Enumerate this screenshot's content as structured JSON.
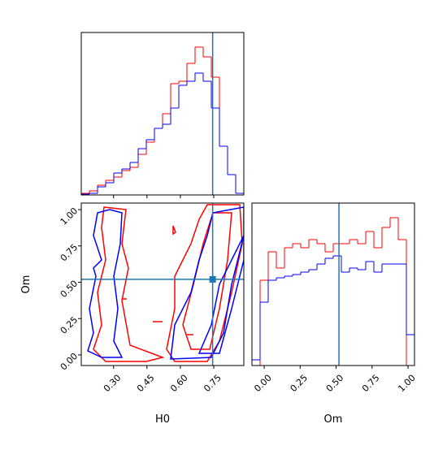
{
  "chart_data": [
    {
      "type": "histogram",
      "bins": [
        0.155,
        0.1915,
        0.228,
        0.2645,
        0.301,
        0.3375,
        0.374,
        0.4105,
        0.447,
        0.4835,
        0.52,
        0.5565,
        0.593,
        0.6295,
        0.666,
        0.7025,
        0.739,
        0.7755,
        0.812,
        0.8485,
        0.885
      ],
      "series": [
        {
          "color": "#ff0000",
          "values": [
            2,
            5,
            12,
            18,
            22,
            30,
            34,
            50,
            65,
            82,
            100,
            137,
            140,
            162,
            182,
            170,
            145,
            60,
            25,
            2
          ]
        },
        {
          "color": "#0000ff",
          "values": [
            1,
            2,
            10,
            15,
            27,
            32,
            40,
            57,
            68,
            82,
            87,
            107,
            135,
            140,
            150,
            140,
            107,
            60,
            25,
            2
          ]
        }
      ],
      "xlim": [
        0.155,
        0.885
      ],
      "ylim": [
        0,
        200
      ],
      "xticks": [
        0.3,
        0.45,
        0.6,
        0.75
      ],
      "truth": 0.745,
      "truth_color": "#1f77b4"
    },
    {
      "type": "contour",
      "xlabel": "H0",
      "ylabel": "Om",
      "xlim": [
        0.155,
        0.885
      ],
      "ylim": [
        -0.073,
        1.045
      ],
      "xticks": [
        {
          "value": 0.3,
          "label": "0.30"
        },
        {
          "value": 0.45,
          "label": "0.45"
        },
        {
          "value": 0.6,
          "label": "0.60"
        },
        {
          "value": 0.75,
          "label": "0.75"
        }
      ],
      "yticks": [
        {
          "value": 0,
          "label": "0.00"
        },
        {
          "value": 0.25,
          "label": "0.25"
        },
        {
          "value": 0.5,
          "label": "0.50"
        },
        {
          "value": 0.75,
          "label": "0.75"
        },
        {
          "value": 1,
          "label": "1.00"
        }
      ],
      "truth": [
        0.745,
        0.52
      ],
      "truth_color": "#1f77b4"
    },
    {
      "type": "histogram",
      "xlabel": "Om",
      "bins": [
        -0.085,
        -0.0285,
        0.028,
        0.0845,
        0.141,
        0.1975,
        0.254,
        0.3105,
        0.367,
        0.4235,
        0.48,
        0.5365,
        0.593,
        0.6495,
        0.706,
        0.7625,
        0.819,
        0.8755,
        0.932,
        0.9885,
        1.045
      ],
      "series": [
        {
          "color": "#ff0000",
          "values": [
            0,
            105,
            140,
            120,
            145,
            150,
            145,
            155,
            150,
            140,
            150,
            150,
            155,
            150,
            165,
            145,
            170,
            182,
            155,
            0
          ]
        },
        {
          "color": "#0000ff",
          "values": [
            7,
            78,
            105,
            108,
            110,
            112,
            115,
            118,
            125,
            132,
            135,
            115,
            120,
            118,
            128,
            115,
            125,
            125,
            125,
            38
          ]
        }
      ],
      "xlim": [
        -0.085,
        1.045
      ],
      "ylim": [
        0,
        200
      ],
      "xticks": [
        {
          "value": 0,
          "label": "0.00"
        },
        {
          "value": 0.25,
          "label": "0.25"
        },
        {
          "value": 0.5,
          "label": "0.50"
        },
        {
          "value": 0.75,
          "label": "0.75"
        },
        {
          "value": 1,
          "label": "1.00"
        }
      ],
      "truth": 0.52,
      "truth_color": "#1f77b4"
    }
  ]
}
